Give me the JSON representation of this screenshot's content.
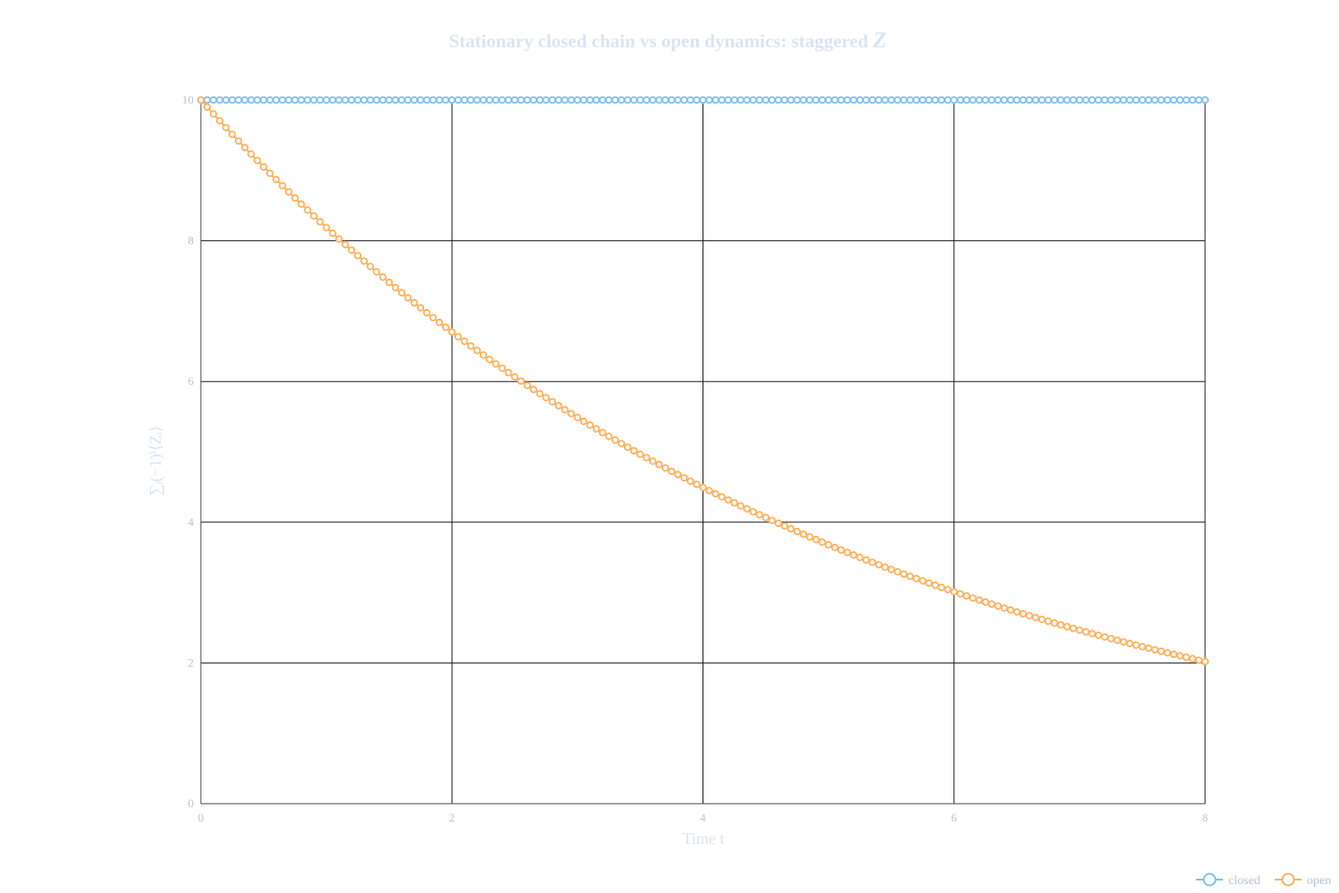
{
  "chart_data": {
    "type": "line",
    "title": "Stationary closed chain vs open dynamics: staggered Z",
    "title_text": "Stationary closed chain vs open dynamics: staggered ",
    "title_symbol": "Z",
    "xlabel": "Time t",
    "ylabel": "∑ᵢ(−1)ⁱ⟨Zᵢ⟩",
    "xlim": [
      0,
      8
    ],
    "ylim": [
      0,
      10
    ],
    "xticks": [
      0,
      2,
      4,
      6,
      8
    ],
    "yticks": [
      0,
      2,
      4,
      6,
      8,
      10
    ],
    "grid": true,
    "legend_position": "bottom-right",
    "x": {
      "start": 0,
      "stop": 8,
      "step": 0.05
    },
    "series": [
      {
        "name": "closed",
        "color": "#7dbff0",
        "marker": "open-circle",
        "model": {
          "kind": "constant",
          "value": 10
        }
      },
      {
        "name": "open",
        "color": "#ffb05c",
        "marker": "open-circle",
        "model": {
          "kind": "exponential",
          "amplitude": 10,
          "rate": 0.2
        }
      }
    ],
    "sample_values": {
      "x": [
        0,
        1,
        2,
        3,
        4,
        5,
        6,
        7,
        8
      ],
      "closed": [
        10,
        10,
        10,
        10,
        10,
        10,
        10,
        10,
        10
      ],
      "open": [
        10,
        8.19,
        6.7,
        5.49,
        4.49,
        3.68,
        3.01,
        2.47,
        2.02
      ]
    }
  }
}
